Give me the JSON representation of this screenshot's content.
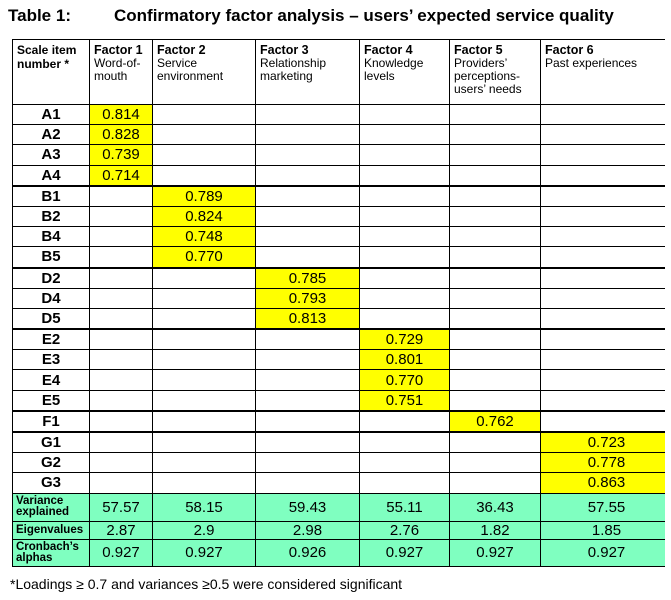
{
  "table_label": "Table 1:",
  "title": "Confirmatory factor analysis – users’ expected service quality",
  "headers": [
    {
      "name": "Scale item number *",
      "sub": ""
    },
    {
      "name": "Factor 1",
      "sub": "Word-of-mouth"
    },
    {
      "name": "Factor 2",
      "sub": "Service environment"
    },
    {
      "name": "Factor 3",
      "sub": "Relationship marketing"
    },
    {
      "name": "Factor 4",
      "sub": "Knowledge levels"
    },
    {
      "name": "Factor 5",
      "sub": "Providers’ perceptions- users’ needs"
    },
    {
      "name": "Factor 6",
      "sub": "Past experiences"
    }
  ],
  "rows": [
    {
      "item": "A1",
      "factor": 1,
      "value": "0.814"
    },
    {
      "item": "A2",
      "factor": 1,
      "value": "0.828"
    },
    {
      "item": "A3",
      "factor": 1,
      "value": "0.739"
    },
    {
      "item": "A4",
      "factor": 1,
      "value": "0.714"
    },
    {
      "item": "B1",
      "factor": 2,
      "value": "0.789"
    },
    {
      "item": "B2",
      "factor": 2,
      "value": "0.824"
    },
    {
      "item": "B4",
      "factor": 2,
      "value": "0.748"
    },
    {
      "item": "B5",
      "factor": 2,
      "value": "0.770"
    },
    {
      "item": "D2",
      "factor": 3,
      "value": "0.785"
    },
    {
      "item": "D4",
      "factor": 3,
      "value": "0.793"
    },
    {
      "item": "D5",
      "factor": 3,
      "value": "0.813"
    },
    {
      "item": "E2",
      "factor": 4,
      "value": "0.729"
    },
    {
      "item": "E3",
      "factor": 4,
      "value": "0.801"
    },
    {
      "item": "E4",
      "factor": 4,
      "value": "0.770"
    },
    {
      "item": "E5",
      "factor": 4,
      "value": "0.751"
    },
    {
      "item": "F1",
      "factor": 5,
      "value": "0.762"
    },
    {
      "item": "G1",
      "factor": 6,
      "value": "0.723"
    },
    {
      "item": "G2",
      "factor": 6,
      "value": "0.778"
    },
    {
      "item": "G3",
      "factor": 6,
      "value": "0.863"
    }
  ],
  "footer": [
    {
      "label": "Variance explained",
      "values": [
        "57.57",
        "58.15",
        "59.43",
        "55.11",
        "36.43",
        "57.55"
      ]
    },
    {
      "label": "Eigenvalues",
      "values": [
        "2.87",
        "2.9",
        "2.98",
        "2.76",
        "1.82",
        "1.85"
      ]
    },
    {
      "label": "Cronbach’s alphas",
      "values": [
        "0.927",
        "0.927",
        "0.926",
        "0.927",
        "0.927",
        "0.927"
      ]
    }
  ],
  "note": "*Loadings ≥ 0.7 and variances ≥0.5 were considered significant",
  "colors": {
    "highlight": "#ffff00",
    "footer_bg": "#7fffc0"
  }
}
